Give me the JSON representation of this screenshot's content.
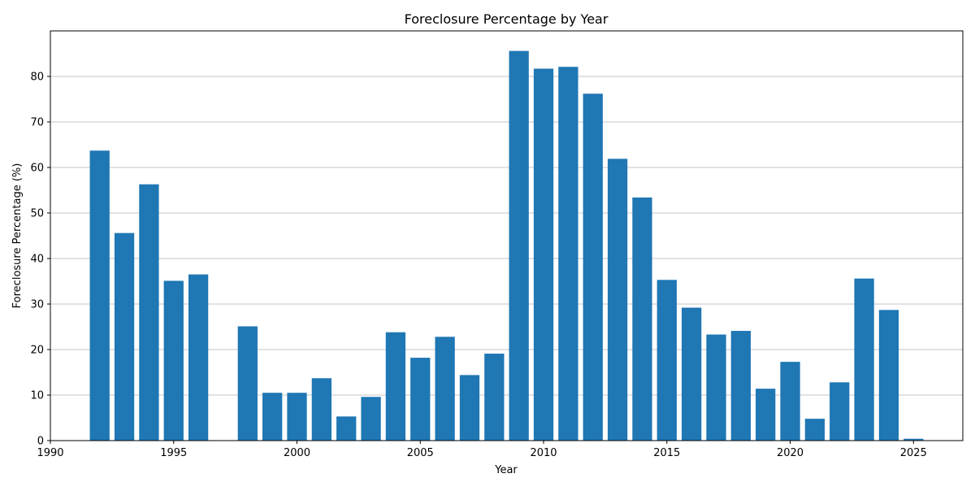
{
  "chart_data": {
    "type": "bar",
    "title": "Foreclosure Percentage by Year",
    "xlabel": "Year",
    "ylabel": "Foreclosure Percentage (%)",
    "x": [
      1992,
      1993,
      1994,
      1995,
      1996,
      1998,
      1999,
      2000,
      2001,
      2002,
      2003,
      2004,
      2005,
      2006,
      2007,
      2008,
      2009,
      2010,
      2011,
      2012,
      2013,
      2014,
      2015,
      2016,
      2017,
      2018,
      2019,
      2020,
      2021,
      2022,
      2023,
      2024,
      2025
    ],
    "values": [
      63.7,
      45.6,
      56.3,
      35.1,
      36.5,
      25.1,
      10.5,
      10.5,
      13.7,
      5.3,
      9.6,
      23.8,
      18.2,
      22.8,
      14.4,
      19.1,
      85.6,
      81.7,
      82.1,
      76.2,
      61.9,
      53.4,
      35.3,
      29.2,
      23.3,
      24.1,
      11.4,
      17.3,
      4.8,
      12.8,
      35.6,
      28.7,
      0.4
    ],
    "xlim": [
      1990,
      2027
    ],
    "ylim": [
      0,
      90
    ],
    "xticks": [
      1990,
      1995,
      2000,
      2005,
      2010,
      2015,
      2020,
      2025
    ],
    "yticks": [
      0,
      10,
      20,
      30,
      40,
      50,
      60,
      70,
      80
    ],
    "grid": "y-major",
    "bar_color": "#1f77b4"
  }
}
